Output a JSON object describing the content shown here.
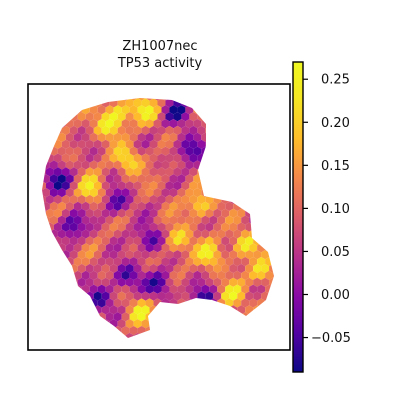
{
  "chart_data": {
    "type": "scatter",
    "title_lines": [
      "ZH1007nec",
      "TP53 activity"
    ],
    "xlabel": "",
    "ylabel": "",
    "marker": "hexagon",
    "grid": false,
    "axes_ticks": false,
    "colormap": "plasma",
    "colorbar": {
      "vmin": -0.09,
      "vmax": 0.27,
      "ticks": [
        -0.05,
        0.0,
        0.05,
        0.1,
        0.15,
        0.2,
        0.25
      ],
      "tick_labels": [
        "−0.05",
        "0.00",
        "0.05",
        "0.10",
        "0.15",
        "0.20",
        "0.25"
      ]
    }
  }
}
